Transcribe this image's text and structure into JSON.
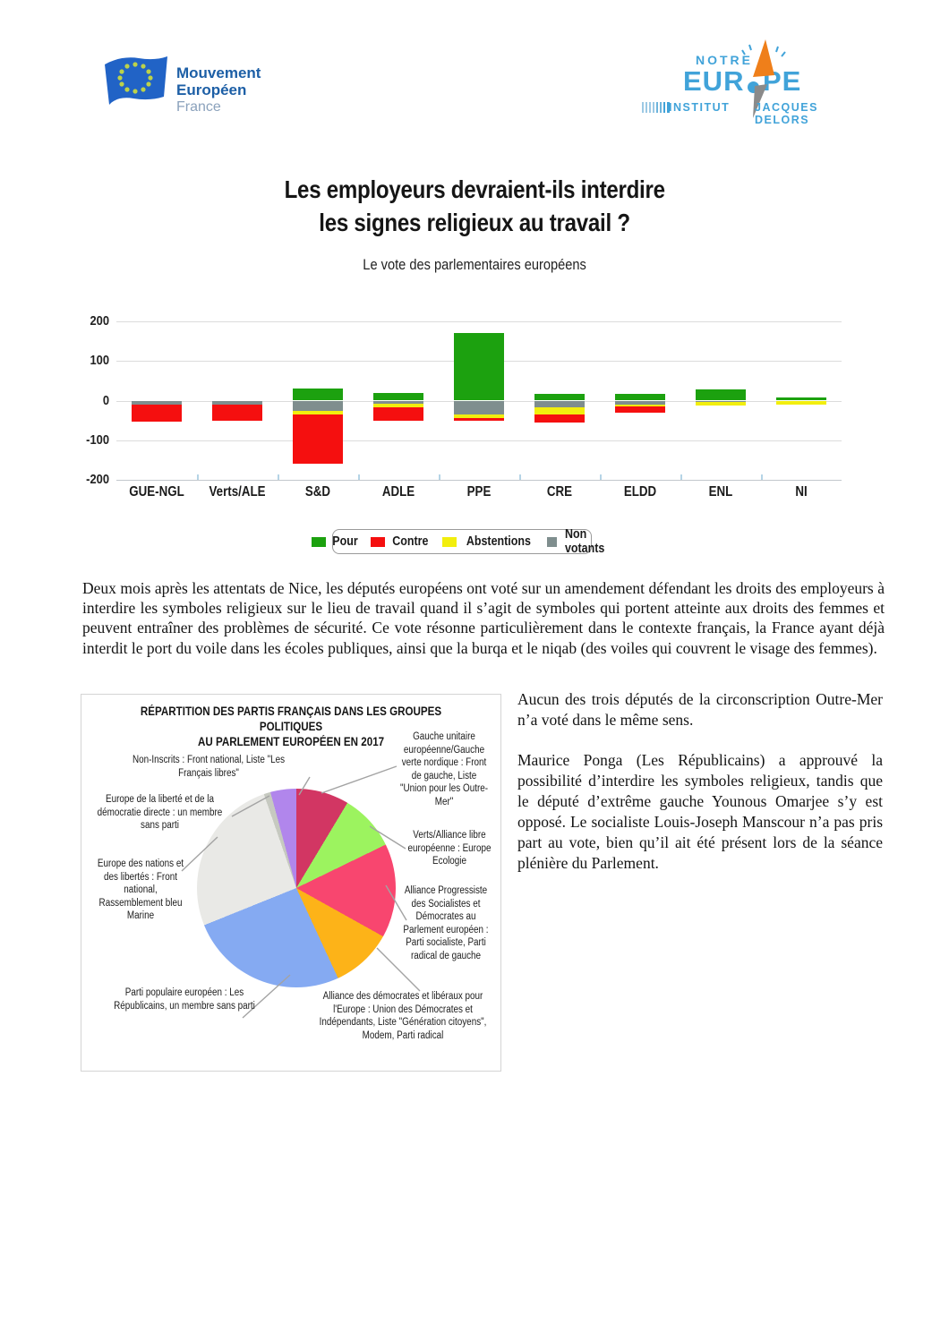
{
  "header": {
    "left_logo": {
      "line1": "Mouvement",
      "line2": "Européen",
      "line3": "France"
    },
    "right_logo": {
      "notre": "NOTRE",
      "eur": "EUR",
      "pe": "PE",
      "institut": "INSTITUT",
      "jacques_delors": "JACQUES DELORS"
    }
  },
  "title": {
    "line1": "Les employeurs devraient-ils interdire",
    "line2": "les signes religieux au travail ?"
  },
  "subtitle": "Le vote des parlementaires européens",
  "chart_data": [
    {
      "type": "bar",
      "stacked": true,
      "title": "Le vote des parlementaires européens",
      "categories": [
        "GUE-NGL",
        "Verts/ALE",
        "S&D",
        "ADLE",
        "PPE",
        "CRE",
        "ELDD",
        "ENL",
        "NI"
      ],
      "series": [
        {
          "name": "Pour",
          "color": "#1ca10f",
          "side": "up",
          "values": [
            0,
            0,
            30,
            20,
            170,
            18,
            18,
            28,
            7
          ]
        },
        {
          "name": "Contre",
          "color": "#f50f0f",
          "side": "down",
          "values": [
            41,
            40,
            126,
            33,
            5,
            22,
            17,
            0,
            0
          ]
        },
        {
          "name": "Abstentions",
          "color": "#f2ee0e",
          "side": "down",
          "values": [
            0,
            0,
            9,
            9,
            9,
            18,
            3,
            9,
            8
          ]
        },
        {
          "name": "Non votants",
          "color": "#7f8e8e",
          "side": "down",
          "values": [
            11,
            10,
            25,
            9,
            36,
            16,
            11,
            4,
            2
          ]
        }
      ],
      "neg_stack_order": [
        "Non votants",
        "Abstentions",
        "Contre"
      ],
      "ylim": [
        -200,
        200
      ],
      "yticks": [
        200,
        100,
        0,
        -100,
        -200
      ],
      "grid": true,
      "legend_position": "bottom",
      "legend": [
        "Pour",
        "Contre",
        "Abstentions",
        "Non votants"
      ]
    },
    {
      "type": "pie",
      "title_line1": "RÉPARTITION DES PARTIS FRANÇAIS DANS LES GROUPES POLITIQUES",
      "title_line2": "AU PARLEMENT EUROPÉEN EN 2017",
      "start_angle_deg": 0,
      "direction": "clockwise",
      "slices": [
        {
          "label": "Gauche unitaire européenne/Gauche verte nordique : Front de gauche, Liste \"Union pour les Outre-Mer\"",
          "pct": 8.6,
          "color": "#d23663"
        },
        {
          "label": "Verts/Alliance libre européenne : Europe Ecologie",
          "pct": 9.2,
          "color": "#9cf35f"
        },
        {
          "label": "Alliance Progressiste des Socialistes et Démocrates au Parlement européen : Parti socialiste, Parti radical de gauche",
          "pct": 15.3,
          "color": "#f8466f"
        },
        {
          "label": "Alliance des démocrates et libéraux pour l'Europe : Union des Démocrates et Indépendants, Liste \"Génération citoyens\", Modem, Parti radical",
          "pct": 10.0,
          "color": "#fdb318"
        },
        {
          "label": "Parti populaire européen : Les Républicains, un membre sans parti",
          "pct": 25.8,
          "color": "#85aaf2"
        },
        {
          "label": "Europe des nations et des libertés : Front national, Rassemblement bleu Marine",
          "pct": 25.8,
          "color": "#e9e9e6"
        },
        {
          "label": "Europe de la liberté et de la démocratie directe : un membre sans parti",
          "pct": 1.1,
          "color": "#c6c9c0"
        },
        {
          "label": "Non-Inscrits : Front national, Liste \"Les Français libres\"",
          "pct": 4.2,
          "color": "#b186ec"
        }
      ]
    }
  ],
  "paragraph": "Deux mois après les attentats de Nice, les députés européens ont voté sur un amendement défendant les droits des employeurs à interdire les symboles religieux sur le lieu de travail quand il s’agit de symboles qui portent atteinte aux droits des femmes et peuvent entraîner des problèmes de sécurité. Ce vote résonne particulièrement dans le contexte français, la France ayant déjà interdit le port du voile dans les écoles publiques, ainsi que la burqa et le niqab (des voiles qui couvrent le visage des femmes).",
  "right_column": {
    "para1": "Aucun des trois députés de la circonscription Outre-Mer n’a voté dans le même sens.",
    "para2": "Maurice Ponga (Les Républicains) a approuvé la possibilité d’interdire les symboles religieux, tandis que le député d’extrême gauche Younous Omarjee s’y est opposé. Le socialiste Louis-Joseph Manscour n’a pas pris part au vote, bien qu’il ait été présent lors de la séance plénière du Parlement."
  }
}
